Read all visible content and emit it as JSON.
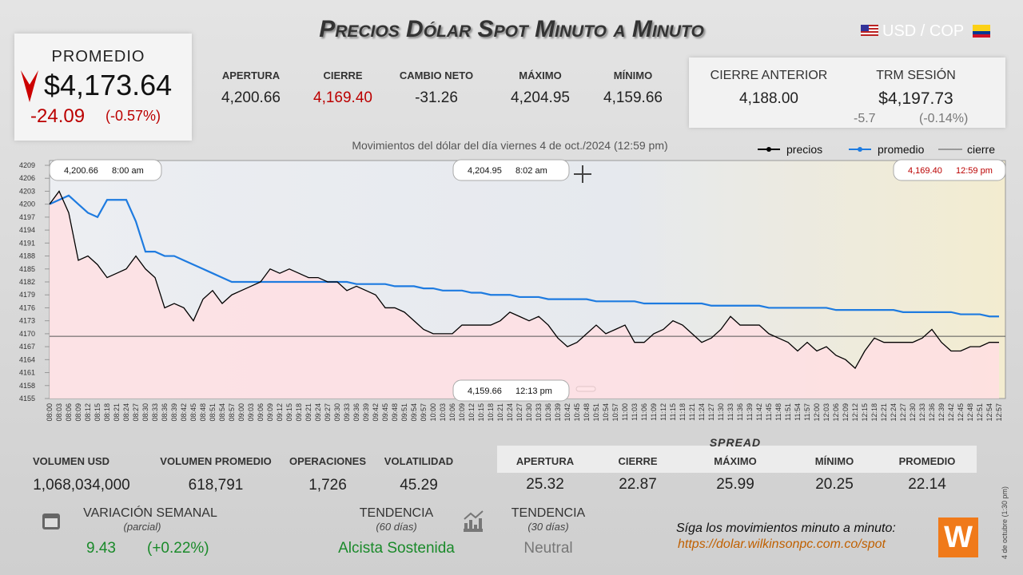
{
  "header": {
    "title": "Precios Dólar Spot Minuto a Minuto",
    "pair": "USD / COP"
  },
  "promedio": {
    "label": "PROMEDIO",
    "value": "$4,173.64",
    "change": "-24.09",
    "percent": "(-0.57%)"
  },
  "stats": [
    {
      "label": "APERTURA",
      "value": "4,200.66"
    },
    {
      "label": "CIERRE",
      "value": "4,169.40"
    },
    {
      "label": "CAMBIO NETO",
      "value": "-31.26"
    },
    {
      "label": "MÁXIMO",
      "value": "4,204.95"
    },
    {
      "label": "MÍNIMO",
      "value": "4,159.66"
    }
  ],
  "previous": {
    "cierre_label": "CIERRE ANTERIOR",
    "cierre_value": "4,188.00",
    "trm_label": "TRM SESIÓN",
    "trm_value": "$4,197.73",
    "trm_change": "-5.7",
    "trm_percent": "(-0.14%)"
  },
  "chart_data": {
    "type": "line",
    "title": "Movimientos del dólar del día viernes 4 de oct./2024 (12:59 pm)",
    "categories": [
      "08:00",
      "08:03",
      "08:06",
      "08:09",
      "08:12",
      "08:15",
      "08:18",
      "08:21",
      "08:24",
      "08:27",
      "08:30",
      "08:33",
      "08:36",
      "08:39",
      "08:42",
      "08:45",
      "08:48",
      "08:51",
      "08:54",
      "08:57",
      "09:00",
      "09:03",
      "09:06",
      "09:09",
      "09:12",
      "09:15",
      "09:18",
      "09:21",
      "09:24",
      "09:27",
      "09:30",
      "09:33",
      "09:36",
      "09:39",
      "09:42",
      "09:45",
      "09:48",
      "09:51",
      "09:54",
      "09:57",
      "10:00",
      "10:03",
      "10:06",
      "10:09",
      "10:12",
      "10:15",
      "10:18",
      "10:21",
      "10:24",
      "10:27",
      "10:30",
      "10:33",
      "10:36",
      "10:39",
      "10:42",
      "10:45",
      "10:48",
      "10:51",
      "10:54",
      "10:57",
      "11:00",
      "11:03",
      "11:06",
      "11:09",
      "11:12",
      "11:15",
      "11:18",
      "11:21",
      "11:24",
      "11:27",
      "11:30",
      "11:33",
      "11:36",
      "11:39",
      "11:42",
      "11:45",
      "11:48",
      "11:51",
      "11:54",
      "11:57",
      "12:00",
      "12:03",
      "12:06",
      "12:09",
      "12:12",
      "12:15",
      "12:18",
      "12:21",
      "12:24",
      "12:27",
      "12:30",
      "12:33",
      "12:36",
      "12:39",
      "12:42",
      "12:45",
      "12:48",
      "12:51",
      "12:54",
      "12:57"
    ],
    "series": [
      {
        "name": "precios",
        "color": "#000000",
        "values": [
          4200,
          4203,
          4198,
          4187,
          4188,
          4186,
          4183,
          4184,
          4185,
          4188,
          4185,
          4183,
          4176,
          4177,
          4176,
          4173,
          4178,
          4180,
          4177,
          4179,
          4180,
          4181,
          4182,
          4185,
          4184,
          4185,
          4184,
          4183,
          4183,
          4182,
          4182,
          4180,
          4181,
          4180,
          4179,
          4176,
          4176,
          4175,
          4173,
          4171,
          4170,
          4170,
          4170,
          4172,
          4172,
          4172,
          4172,
          4173,
          4175,
          4174,
          4173,
          4174,
          4172,
          4169,
          4167,
          4168,
          4170,
          4172,
          4170,
          4171,
          4172,
          4168,
          4168,
          4170,
          4171,
          4173,
          4172,
          4170,
          4168,
          4169,
          4171,
          4174,
          4172,
          4172,
          4172,
          4170,
          4169,
          4168,
          4166,
          4168,
          4166,
          4167,
          4165,
          4164,
          4162,
          4166,
          4169,
          4168,
          4168,
          4168,
          4168,
          4169,
          4171,
          4168,
          4166,
          4166,
          4167,
          4167,
          4168,
          4168
        ]
      },
      {
        "name": "promedio",
        "color": "#1e7be0",
        "values": [
          4200,
          4201,
          4202,
          4200,
          4198,
          4197,
          4201,
          4201,
          4201,
          4196,
          4189,
          4189,
          4188,
          4188,
          4187,
          4186,
          4185,
          4184,
          4183,
          4182,
          4182,
          4182,
          4182,
          4182,
          4182,
          4182,
          4182,
          4182,
          4182,
          4182,
          4182,
          4182,
          4181.5,
          4181.5,
          4181.5,
          4181.5,
          4181,
          4181,
          4181,
          4180.5,
          4180.5,
          4180,
          4180,
          4180,
          4179.5,
          4179.5,
          4179,
          4179,
          4179,
          4178.5,
          4178.5,
          4178.5,
          4178,
          4178,
          4178,
          4178,
          4178,
          4177.5,
          4177.5,
          4177.5,
          4177.5,
          4177.5,
          4177,
          4177,
          4177,
          4177,
          4177,
          4177,
          4177,
          4176.5,
          4176.5,
          4176.5,
          4176.5,
          4176.5,
          4176.5,
          4176,
          4176,
          4176,
          4176,
          4176,
          4176,
          4176,
          4175.5,
          4175.5,
          4175.5,
          4175.5,
          4175.5,
          4175.5,
          4175.5,
          4175,
          4175,
          4175,
          4175,
          4175,
          4175,
          4174.5,
          4174.5,
          4174.5,
          4174,
          4174
        ]
      }
    ],
    "close_line": {
      "name": "cierre",
      "value": 4169.4,
      "color": "#555555"
    },
    "ylim": [
      4155,
      4209
    ],
    "yticks": [
      4155,
      4158,
      4161,
      4164,
      4167,
      4170,
      4173,
      4176,
      4179,
      4182,
      4185,
      4188,
      4191,
      4194,
      4197,
      4200,
      4203,
      4206,
      4209
    ],
    "annotations": [
      {
        "price": "4,200.66",
        "time": "8:00 am"
      },
      {
        "price": "4,204.95",
        "time": "8:02 am"
      },
      {
        "price": "4,169.40",
        "time": "12:59 pm"
      },
      {
        "price": "4,159.66",
        "time": "12:13 pm"
      }
    ]
  },
  "volume": [
    {
      "label": "VOLUMEN USD",
      "value": "1,068,034,000"
    },
    {
      "label": "VOLUMEN PROMEDIO",
      "value": "618,791"
    },
    {
      "label": "OPERACIONES",
      "value": "1,726"
    },
    {
      "label": "VOLATILIDAD",
      "value": "45.29"
    }
  ],
  "spread": {
    "title": "SPREAD",
    "items": [
      {
        "label": "APERTURA",
        "value": "25.32"
      },
      {
        "label": "CIERRE",
        "value": "22.87"
      },
      {
        "label": "MÁXIMO",
        "value": "25.99"
      },
      {
        "label": "MÍNIMO",
        "value": "20.25"
      },
      {
        "label": "PROMEDIO",
        "value": "22.14"
      }
    ]
  },
  "weekly": {
    "label": "VARIACIÓN SEMANAL",
    "sub": "(parcial)",
    "value": "9.43",
    "percent": "(+0.22%)"
  },
  "trend60": {
    "label": "TENDENCIA",
    "sub": "(60 días)",
    "value": "Alcista Sostenida"
  },
  "trend30": {
    "label": "TENDENCIA",
    "sub": "(30 días)",
    "value": "Neutral"
  },
  "footer": {
    "cta": "Síga los movimientos minuto a minuto:",
    "url": "https://dolar.wilkinsonpc.com.co/spot",
    "date": "4 de octubre (1:30 pm)",
    "logo": "W"
  }
}
